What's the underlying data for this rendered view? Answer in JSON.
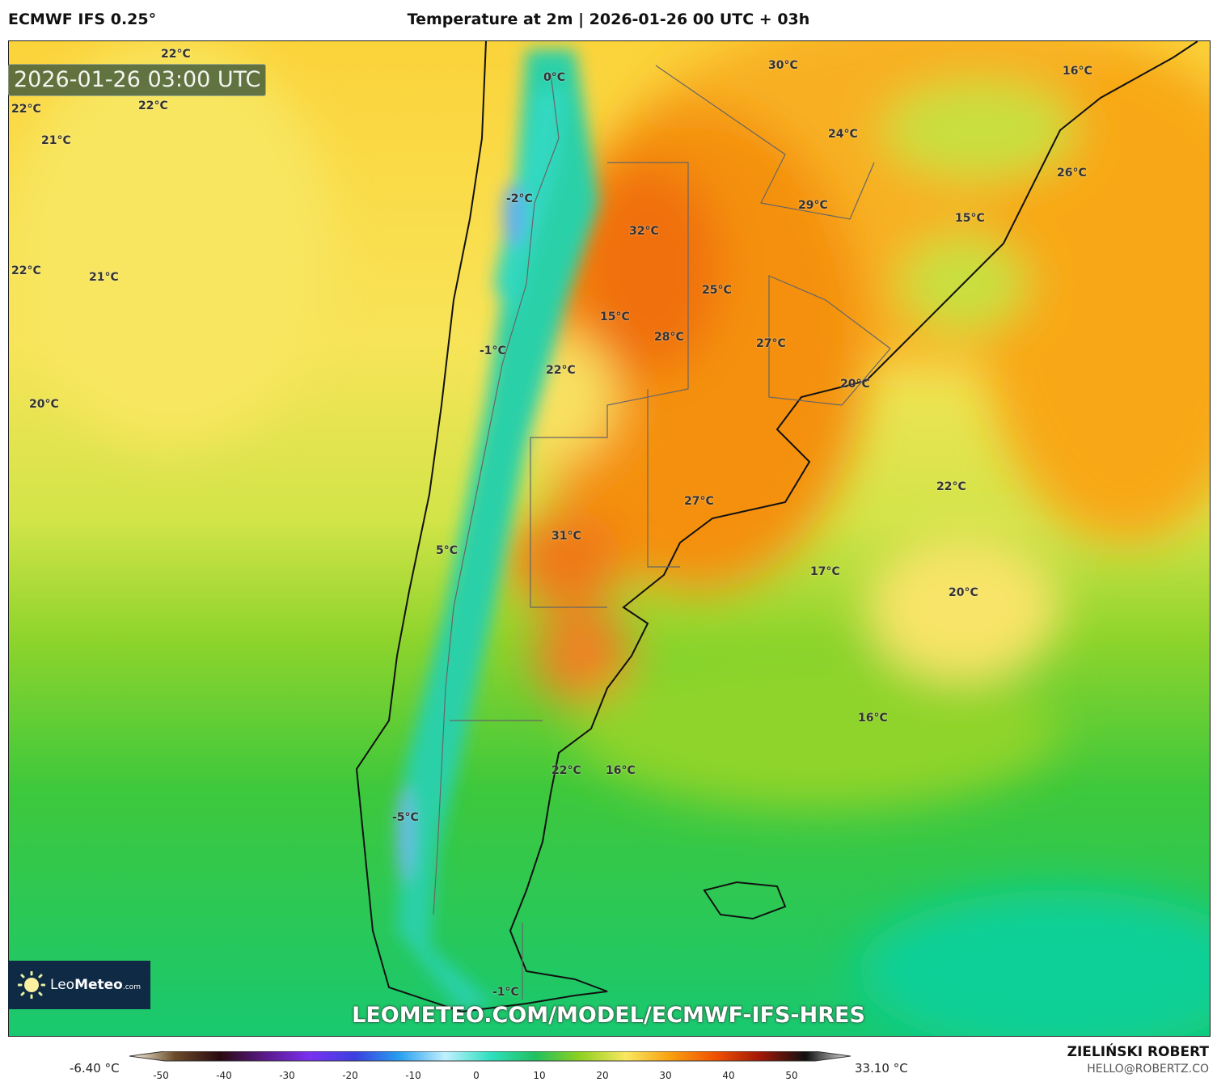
{
  "header": {
    "model": "ECMWF IFS 0.25°",
    "title": "Temperature at 2m | 2026-01-26 00 UTC + 03h"
  },
  "map": {
    "timestamp": "2026-01-26 03:00 UTC",
    "labels": [
      "22°C",
      "22°C",
      "22°C",
      "21°C",
      "22°C",
      "21°C",
      "20°C",
      "0°C",
      "-2°C",
      "-1°C",
      "5°C",
      "-5°C",
      "-1°C",
      "30°C",
      "24°C",
      "29°C",
      "16°C",
      "26°C",
      "15°C",
      "32°C",
      "25°C",
      "15°C",
      "28°C",
      "27°C",
      "22°C",
      "20°C",
      "27°C",
      "31°C",
      "22°C",
      "17°C",
      "20°C",
      "16°C",
      "22°C",
      "16°C"
    ],
    "watermark_url": "LEOMETEO.COM/MODEL/ECMWF-IFS-HRES"
  },
  "logo": {
    "name": "LeoMeteo",
    "part1": "Leo",
    "part2": "Meteo",
    "suffix": ".com"
  },
  "colorbar": {
    "min_label": "-6.40 °C",
    "max_label": "33.10 °C",
    "ticks": [
      "-50",
      "-40",
      "-30",
      "-20",
      "-10",
      "0",
      "10",
      "20",
      "30",
      "40",
      "50"
    ],
    "colors": [
      "#fffbe8",
      "#6b4a2a",
      "#2a0a10",
      "#5a1a8a",
      "#7a30f0",
      "#3a40e0",
      "#28a0f0",
      "#c0f0ff",
      "#30e0c0",
      "#20c060",
      "#90d020",
      "#f8e860",
      "#f8a010",
      "#f05000",
      "#a01808",
      "#101010",
      "#e8e8e8"
    ]
  },
  "footer": {
    "author": "ZIELIŃSKI ROBERT",
    "email": "HELLO@ROBERTZ.CO"
  }
}
